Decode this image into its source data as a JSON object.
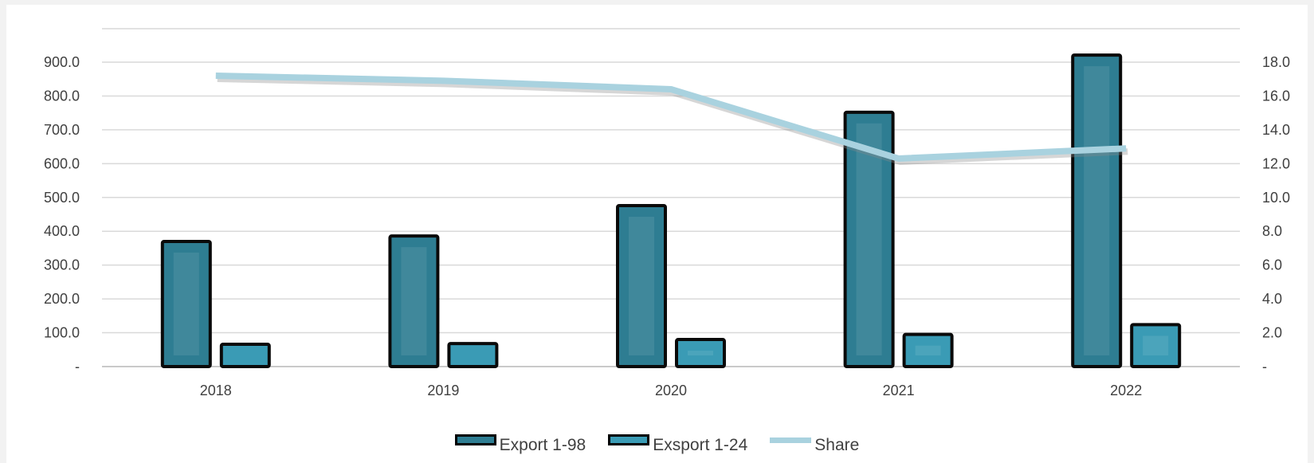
{
  "chart_data": {
    "type": "bar",
    "categories": [
      "2018",
      "2019",
      "2020",
      "2021",
      "2022"
    ],
    "series": [
      {
        "name": "Export 1-98",
        "kind": "bar",
        "axis": "left",
        "color": "#2e7d92",
        "values": [
          370,
          386,
          476,
          752,
          921
        ]
      },
      {
        "name": "Exsport 1-24",
        "kind": "bar",
        "axis": "left",
        "color": "#3a9bb5",
        "values": [
          66,
          68,
          80,
          95,
          124
        ]
      },
      {
        "name": "Share",
        "kind": "line",
        "axis": "right",
        "color": "#a9d2df",
        "values": [
          17.2,
          16.9,
          16.4,
          12.3,
          12.9
        ]
      }
    ],
    "y_left": {
      "min": 0,
      "max": 900,
      "step": 100,
      "ticks": [
        "-",
        "100.0",
        "200.0",
        "300.0",
        "400.0",
        "500.0",
        "600.0",
        "700.0",
        "800.0",
        "900.0"
      ]
    },
    "y_right": {
      "min": 0,
      "max": 18,
      "step": 2,
      "ticks": [
        "-",
        "2.0",
        "4.0",
        "6.0",
        "8.0",
        "10.0",
        "12.0",
        "14.0",
        "16.0",
        "18.0"
      ]
    },
    "grid": true,
    "legend_position": "bottom"
  },
  "legend": {
    "items": [
      {
        "label": "Export 1-98"
      },
      {
        "label": "Exsport 1-24"
      },
      {
        "label": "Share"
      }
    ]
  }
}
